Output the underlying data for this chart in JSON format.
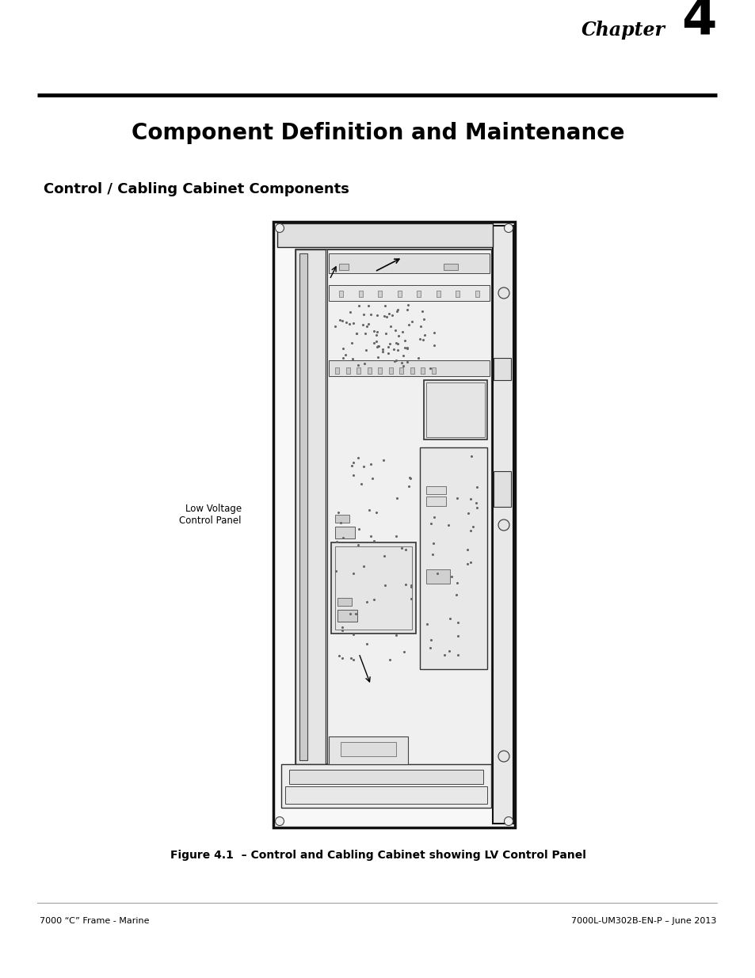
{
  "chapter_text": "Chapter",
  "chapter_number": "4",
  "title": "Component Definition and Maintenance",
  "subtitle": "Control / Cabling Cabinet Components",
  "figure_caption": "Figure 4.1  – Control and Cabling Cabinet showing LV Control Panel",
  "footer_left": "7000 “C” Frame - Marine",
  "footer_right": "7000L-UM302B-EN-P – June 2013",
  "annotation_text": "Low Voltage\nControl Panel",
  "bg_color": "#ffffff",
  "text_color": "#000000"
}
